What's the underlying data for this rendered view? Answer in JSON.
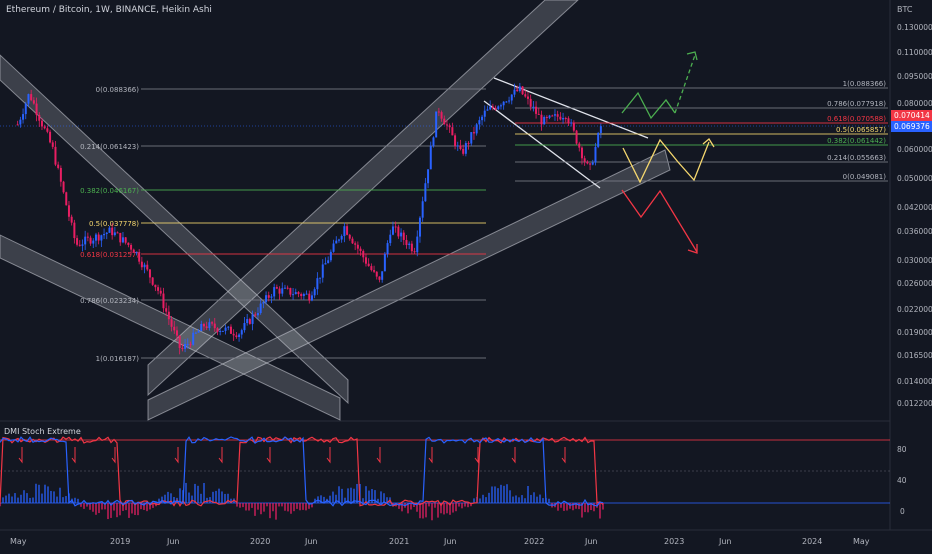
{
  "header": {
    "title": "Ethereum / Bitcoin, 1W, BINANCE, Heikin Ashi",
    "currency": "BTC"
  },
  "indicator": {
    "name": "DMI Stoch Extreme",
    "levels": [
      "80",
      "40",
      "0"
    ]
  },
  "colors": {
    "background": "#131722",
    "up_candle": "#2962ff",
    "down_candle": "#e91e63",
    "channel_fill": "#d1d4dc",
    "fib_line": "#787b86",
    "fib_golden": "#f5d76e",
    "fib_red": "#f23645",
    "fib_green": "#4caf50",
    "arrow_green": "#4caf50",
    "arrow_yellow": "#f5d76e",
    "arrow_red": "#f23645",
    "price_tag_red": "#f23645",
    "price_tag_blue": "#2962ff"
  },
  "price_axis": {
    "ticks": [
      "0.130000",
      "0.110000",
      "0.095000",
      "0.080000",
      "0.070000",
      "0.060000",
      "0.050000",
      "0.042000",
      "0.036000",
      "0.030000",
      "0.026000",
      "0.022000",
      "0.019000",
      "0.016500",
      "0.014000",
      "0.012200"
    ],
    "current_tags": [
      {
        "value": "0.070414",
        "kind": "red"
      },
      {
        "value": "0.069376",
        "kind": "blue"
      }
    ]
  },
  "time_axis": {
    "labels": [
      "May",
      "2019",
      "Jun",
      "2020",
      "Jun",
      "2021",
      "Jun",
      "2022",
      "Jun",
      "2023",
      "Jun",
      "2024",
      "May"
    ]
  },
  "fib_left": {
    "levels": [
      {
        "label": "0(0.088366)",
        "style": "gray"
      },
      {
        "label": "0.214(0.061423)",
        "style": "gray"
      },
      {
        "label": "0.382(0.046167)",
        "style": "green"
      },
      {
        "label": "0.5(0.037778)",
        "style": "golden"
      },
      {
        "label": "0.618(0.031257)",
        "style": "red"
      },
      {
        "label": "0.786(0.023234)",
        "style": "gray"
      },
      {
        "label": "1(0.016187)",
        "style": "gray"
      }
    ]
  },
  "fib_right": {
    "levels": [
      {
        "label": "1(0.088366)",
        "style": "gray"
      },
      {
        "label": "0.786(0.077918)",
        "style": "gray"
      },
      {
        "label": "0.618(0.070588)",
        "style": "red"
      },
      {
        "label": "0.5(0.065857)",
        "style": "golden"
      },
      {
        "label": "0.382(0.061442)",
        "style": "green"
      },
      {
        "label": "0.214(0.055663)",
        "style": "gray"
      },
      {
        "label": "0(0.049081)",
        "style": "gray"
      }
    ]
  },
  "chart_data": {
    "type": "candlestick",
    "title": "Ethereum / Bitcoin, 1W, BINANCE, Heikin Ashi",
    "ylabel": "BTC",
    "ylim": [
      0.0115,
      0.14
    ],
    "y_scale": "log",
    "x_ticks": [
      "May",
      "2019",
      "Jun",
      "2020",
      "Jun",
      "2021",
      "Jun",
      "2022",
      "Jun",
      "2023",
      "Jun",
      "2024",
      "May"
    ],
    "series": [
      {
        "name": "ETHBTC",
        "path_points": [
          [
            "2018-05",
            0.07
          ],
          [
            "2018-06",
            0.085
          ],
          [
            "2018-08",
            0.06
          ],
          [
            "2018-10",
            0.033
          ],
          [
            "2019-01",
            0.036
          ],
          [
            "2019-03",
            0.032
          ],
          [
            "2019-05",
            0.025
          ],
          [
            "2019-07",
            0.017
          ],
          [
            "2019-09",
            0.02
          ],
          [
            "2019-12",
            0.019
          ],
          [
            "2020-03",
            0.025
          ],
          [
            "2020-06",
            0.024
          ],
          [
            "2020-09",
            0.037
          ],
          [
            "2020-12",
            0.026
          ],
          [
            "2021-01",
            0.037
          ],
          [
            "2021-03",
            0.032
          ],
          [
            "2021-05",
            0.078
          ],
          [
            "2021-07",
            0.058
          ],
          [
            "2021-09",
            0.075
          ],
          [
            "2021-12",
            0.087
          ],
          [
            "2022-02",
            0.071
          ],
          [
            "2022-04",
            0.075
          ],
          [
            "2022-06",
            0.052
          ],
          [
            "2022-07",
            0.0694
          ]
        ]
      }
    ]
  }
}
